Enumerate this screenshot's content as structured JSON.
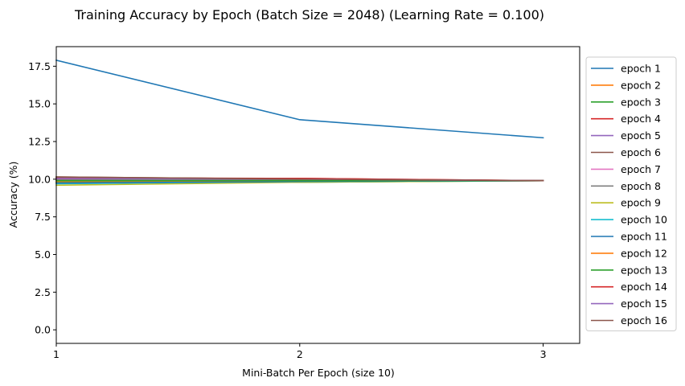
{
  "chart_data": {
    "type": "line",
    "title": "Training Accuracy by Epoch (Batch Size = 2048) (Learning Rate = 0.100)",
    "xlabel": "Mini-Batch Per Epoch (size 10)",
    "ylabel": "Accuracy (%)",
    "x": [
      1,
      2,
      3
    ],
    "xticks": [
      "1",
      "2",
      "3"
    ],
    "yticks": [
      "0.0",
      "2.5",
      "5.0",
      "7.5",
      "10.0",
      "12.5",
      "15.0",
      "17.5"
    ],
    "xlim": [
      1,
      3.15
    ],
    "ylim": [
      -0.9,
      18.8
    ],
    "grid": false,
    "legend_position": "outside-right",
    "series": [
      {
        "name": "epoch 1",
        "color": "#1f77b4",
        "values": [
          17.9,
          13.95,
          12.75
        ]
      },
      {
        "name": "epoch 2",
        "color": "#ff7f0e",
        "values": [
          9.75,
          9.85,
          9.9
        ]
      },
      {
        "name": "epoch 3",
        "color": "#2ca02c",
        "values": [
          9.8,
          9.8,
          9.9
        ]
      },
      {
        "name": "epoch 4",
        "color": "#d62728",
        "values": [
          10.1,
          10.05,
          9.9
        ]
      },
      {
        "name": "epoch 5",
        "color": "#9467bd",
        "values": [
          10.0,
          9.95,
          9.9
        ]
      },
      {
        "name": "epoch 6",
        "color": "#8c564b",
        "values": [
          10.15,
          10.0,
          9.9
        ]
      },
      {
        "name": "epoch 7",
        "color": "#e377c2",
        "values": [
          9.9,
          9.9,
          9.9
        ]
      },
      {
        "name": "epoch 8",
        "color": "#7f7f7f",
        "values": [
          9.95,
          9.95,
          9.9
        ]
      },
      {
        "name": "epoch 9",
        "color": "#bcbd22",
        "values": [
          9.6,
          9.8,
          9.9
        ]
      },
      {
        "name": "epoch 10",
        "color": "#17becf",
        "values": [
          9.7,
          9.85,
          9.9
        ]
      },
      {
        "name": "epoch 11",
        "color": "#1f77b4",
        "values": [
          9.75,
          9.85,
          9.9
        ]
      },
      {
        "name": "epoch 12",
        "color": "#ff7f0e",
        "values": [
          9.85,
          9.9,
          9.9
        ]
      },
      {
        "name": "epoch 13",
        "color": "#2ca02c",
        "values": [
          9.9,
          9.9,
          9.9
        ]
      },
      {
        "name": "epoch 14",
        "color": "#d62728",
        "values": [
          10.05,
          10.05,
          9.9
        ]
      },
      {
        "name": "epoch 15",
        "color": "#9467bd",
        "values": [
          10.05,
          10.0,
          9.9
        ]
      },
      {
        "name": "epoch 16",
        "color": "#8c564b",
        "values": [
          10.15,
          10.0,
          9.9
        ]
      }
    ]
  }
}
